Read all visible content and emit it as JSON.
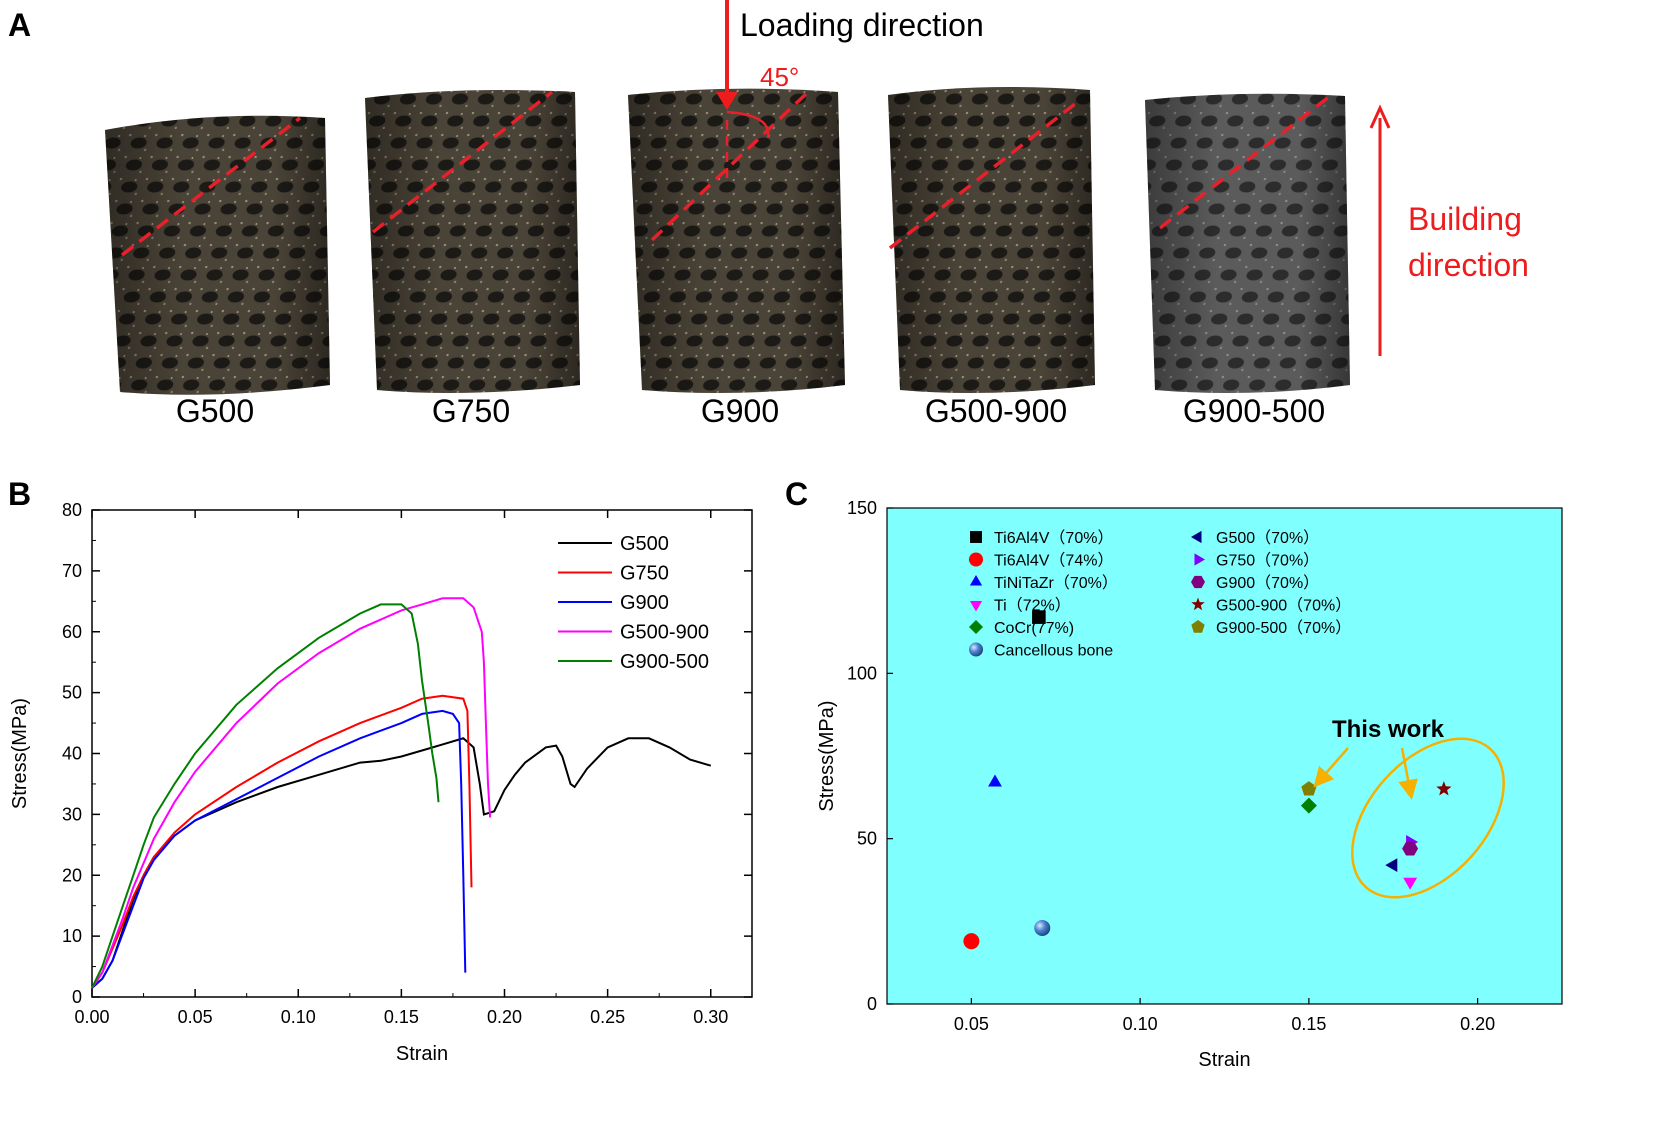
{
  "panel_a": {
    "letter": "A",
    "loading_label": "Loading direction",
    "angle_label": "45°",
    "building_label_1": "Building",
    "building_label_2": "direction",
    "samples": [
      "G500",
      "G750",
      "G900",
      "G500-900",
      "G900-500"
    ],
    "colors": {
      "annotation": "#ee1c1c",
      "dash": "#e8202a"
    }
  },
  "chart_data": [
    {
      "type": "line",
      "panel": "B",
      "xlabel": "Strain",
      "ylabel": "Stress(MPa)",
      "xlim": [
        0,
        0.32
      ],
      "ylim": [
        0,
        80
      ],
      "xticks": [
        0.0,
        0.05,
        0.1,
        0.15,
        0.2,
        0.25,
        0.3
      ],
      "xtick_labels": [
        "0.00",
        "0.05",
        "0.10",
        "0.15",
        "0.20",
        "0.25",
        "0.30"
      ],
      "yticks": [
        0,
        10,
        20,
        30,
        40,
        50,
        60,
        70,
        80
      ],
      "ytick_labels": [
        "0",
        "10",
        "20",
        "30",
        "40",
        "50",
        "60",
        "70",
        "80"
      ],
      "legend_position": "top-right",
      "grid": false,
      "series": [
        {
          "name": "G500",
          "color": "#000000",
          "points": [
            [
              0,
              1.5
            ],
            [
              0.005,
              3
            ],
            [
              0.01,
              6
            ],
            [
              0.015,
              11
            ],
            [
              0.02,
              16
            ],
            [
              0.025,
              20
            ],
            [
              0.03,
              23
            ],
            [
              0.04,
              26.5
            ],
            [
              0.05,
              29
            ],
            [
              0.07,
              32
            ],
            [
              0.09,
              34.5
            ],
            [
              0.11,
              36.5
            ],
            [
              0.13,
              38.5
            ],
            [
              0.14,
              38.8
            ],
            [
              0.15,
              39.5
            ],
            [
              0.16,
              40.5
            ],
            [
              0.17,
              41.5
            ],
            [
              0.18,
              42.5
            ],
            [
              0.185,
              41
            ],
            [
              0.188,
              35
            ],
            [
              0.19,
              30
            ],
            [
              0.195,
              30.5
            ],
            [
              0.2,
              34
            ],
            [
              0.205,
              36.5
            ],
            [
              0.21,
              38.5
            ],
            [
              0.22,
              41
            ],
            [
              0.225,
              41.3
            ],
            [
              0.228,
              39.5
            ],
            [
              0.232,
              35
            ],
            [
              0.234,
              34.5
            ],
            [
              0.24,
              37.5
            ],
            [
              0.25,
              41
            ],
            [
              0.26,
              42.5
            ],
            [
              0.27,
              42.5
            ],
            [
              0.28,
              41
            ],
            [
              0.29,
              39
            ],
            [
              0.3,
              38
            ]
          ]
        },
        {
          "name": "G750",
          "color": "#ff0000",
          "points": [
            [
              0,
              1.5
            ],
            [
              0.005,
              4
            ],
            [
              0.01,
              8
            ],
            [
              0.015,
              12
            ],
            [
              0.02,
              16.5
            ],
            [
              0.025,
              20
            ],
            [
              0.03,
              23
            ],
            [
              0.04,
              27
            ],
            [
              0.05,
              30
            ],
            [
              0.07,
              34.5
            ],
            [
              0.09,
              38.5
            ],
            [
              0.11,
              42
            ],
            [
              0.13,
              45
            ],
            [
              0.15,
              47.5
            ],
            [
              0.16,
              49
            ],
            [
              0.17,
              49.5
            ],
            [
              0.18,
              49
            ],
            [
              0.182,
              47
            ],
            [
              0.183,
              35
            ],
            [
              0.184,
              18
            ]
          ]
        },
        {
          "name": "G900",
          "color": "#0000ff",
          "points": [
            [
              0,
              1.5
            ],
            [
              0.005,
              3
            ],
            [
              0.01,
              6
            ],
            [
              0.015,
              10.5
            ],
            [
              0.02,
              15
            ],
            [
              0.025,
              19.5
            ],
            [
              0.03,
              22.5
            ],
            [
              0.04,
              26.5
            ],
            [
              0.05,
              29
            ],
            [
              0.07,
              32.5
            ],
            [
              0.09,
              36
            ],
            [
              0.11,
              39.5
            ],
            [
              0.13,
              42.5
            ],
            [
              0.15,
              45
            ],
            [
              0.16,
              46.5
            ],
            [
              0.17,
              47
            ],
            [
              0.175,
              46.5
            ],
            [
              0.178,
              45
            ],
            [
              0.179,
              35
            ],
            [
              0.18,
              20
            ],
            [
              0.181,
              4
            ]
          ]
        },
        {
          "name": "G500-900",
          "color": "#ff00ff",
          "points": [
            [
              0,
              1.5
            ],
            [
              0.005,
              4
            ],
            [
              0.01,
              8.5
            ],
            [
              0.015,
              13
            ],
            [
              0.02,
              18
            ],
            [
              0.025,
              22
            ],
            [
              0.03,
              26
            ],
            [
              0.04,
              32
            ],
            [
              0.05,
              37
            ],
            [
              0.07,
              45
            ],
            [
              0.09,
              51.5
            ],
            [
              0.11,
              56.5
            ],
            [
              0.13,
              60.5
            ],
            [
              0.15,
              63.5
            ],
            [
              0.16,
              64.5
            ],
            [
              0.17,
              65.5
            ],
            [
              0.18,
              65.5
            ],
            [
              0.185,
              64
            ],
            [
              0.189,
              60
            ],
            [
              0.19,
              55
            ],
            [
              0.191,
              45
            ],
            [
              0.192,
              35
            ],
            [
              0.193,
              29.5
            ]
          ]
        },
        {
          "name": "G900-500",
          "color": "#008000",
          "points": [
            [
              0,
              1.5
            ],
            [
              0.005,
              5
            ],
            [
              0.01,
              10
            ],
            [
              0.015,
              15
            ],
            [
              0.02,
              20
            ],
            [
              0.025,
              25
            ],
            [
              0.03,
              29.5
            ],
            [
              0.04,
              35
            ],
            [
              0.05,
              40
            ],
            [
              0.07,
              48
            ],
            [
              0.09,
              54
            ],
            [
              0.11,
              59
            ],
            [
              0.13,
              63
            ],
            [
              0.14,
              64.5
            ],
            [
              0.15,
              64.5
            ],
            [
              0.155,
              63
            ],
            [
              0.158,
              58
            ],
            [
              0.16,
              52
            ],
            [
              0.163,
              45
            ],
            [
              0.165,
              40
            ],
            [
              0.167,
              36
            ],
            [
              0.168,
              32
            ]
          ]
        }
      ]
    },
    {
      "type": "scatter",
      "panel": "C",
      "xlabel": "Strain",
      "ylabel": "Stress(MPa)",
      "xlim": [
        0.025,
        0.225
      ],
      "ylim": [
        0,
        150
      ],
      "xticks": [
        0.05,
        0.1,
        0.15,
        0.2
      ],
      "xtick_labels": [
        "0.05",
        "0.10",
        "0.15",
        "0.20"
      ],
      "yticks": [
        0,
        50,
        100,
        150
      ],
      "ytick_labels": [
        "0",
        "50",
        "100",
        "150"
      ],
      "legend_position": "top",
      "background": "#80ffff",
      "grid": false,
      "annotation": "This work",
      "annotation_color": "#f5b000",
      "series": [
        {
          "name": "Ti6Al4V（70%）",
          "marker": "square",
          "color": "#000000",
          "x": 0.07,
          "y": 117
        },
        {
          "name": "Ti6Al4V（74%）",
          "marker": "circle",
          "color": "#ff0000",
          "x": 0.05,
          "y": 19
        },
        {
          "name": "TiNiTaZr（70%）",
          "marker": "triangle-up",
          "color": "#0000ff",
          "x": 0.057,
          "y": 67
        },
        {
          "name": "Ti（72%）",
          "marker": "triangle-down",
          "color": "#ff00ff",
          "x": 0.18,
          "y": 37
        },
        {
          "name": "CoCr(77%)",
          "marker": "diamond",
          "color": "#008000",
          "x": 0.15,
          "y": 60
        },
        {
          "name": "Cancellous bone",
          "marker": "sphere",
          "color": "#2a60b0",
          "x": 0.071,
          "y": 23
        },
        {
          "name": "G500（70%）",
          "marker": "triangle-left",
          "color": "#000080",
          "x": 0.175,
          "y": 42
        },
        {
          "name": "G750（70%）",
          "marker": "triangle-right",
          "color": "#8000ff",
          "x": 0.18,
          "y": 49
        },
        {
          "name": "G900（70%）",
          "marker": "hexagon",
          "color": "#800080",
          "x": 0.18,
          "y": 47
        },
        {
          "name": "G500-900（70%）",
          "marker": "star",
          "color": "#800000",
          "x": 0.19,
          "y": 65
        },
        {
          "name": "G900-500（70%）",
          "marker": "pentagon",
          "color": "#808000",
          "x": 0.15,
          "y": 65
        }
      ]
    }
  ],
  "panel_letters": {
    "b": "B",
    "c": "C"
  }
}
